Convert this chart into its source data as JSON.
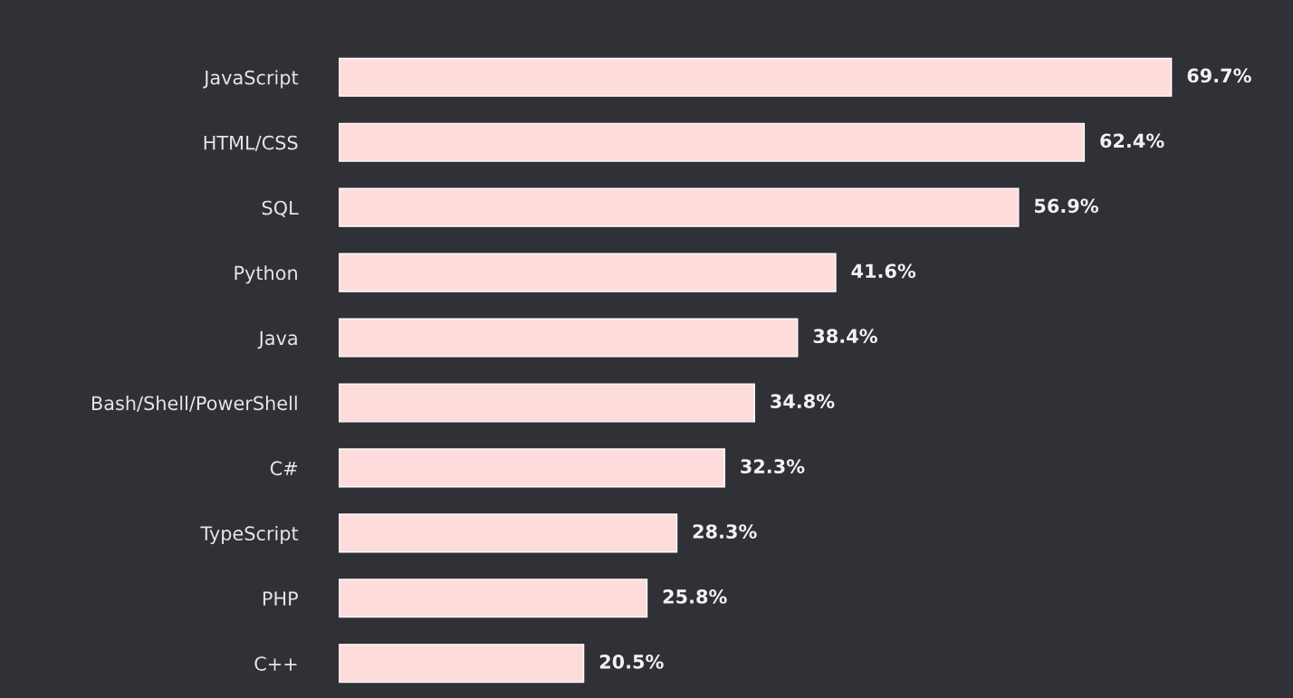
{
  "chart_data": {
    "type": "bar",
    "orientation": "horizontal",
    "categories": [
      "JavaScript",
      "HTML/CSS",
      "SQL",
      "Python",
      "Java",
      "Bash/Shell/PowerShell",
      "C#",
      "TypeScript",
      "PHP",
      "C++"
    ],
    "values": [
      69.7,
      62.4,
      56.9,
      41.6,
      38.4,
      34.8,
      32.3,
      28.3,
      25.8,
      20.5
    ],
    "value_labels": [
      "69.7%",
      "62.4%",
      "56.9%",
      "41.6%",
      "38.4%",
      "34.8%",
      "32.3%",
      "28.3%",
      "25.8%",
      "20.5%"
    ],
    "color": "#ffdcdc"
  }
}
